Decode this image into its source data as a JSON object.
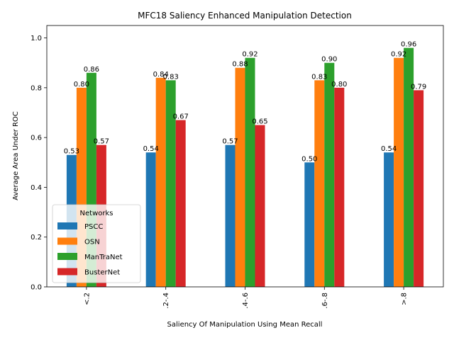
{
  "chart_data": {
    "type": "bar",
    "title": "MFC18 Saliency Enhanced Manipulation Detection",
    "xlabel": "Saliency Of Manipulation Using Mean Recall",
    "ylabel": "Average Area Under ROC",
    "categories": [
      "<.2",
      ".2-.4",
      ".4-.6",
      ".6-.8",
      ">.8"
    ],
    "ylim": [
      0,
      1.05
    ],
    "yticks": [
      "0.0",
      "0.2",
      "0.4",
      "0.6",
      "0.8",
      "1.0"
    ],
    "grid": false,
    "legend": {
      "title": "Networks",
      "placement": "lower-left"
    },
    "series": [
      {
        "name": "PSCC",
        "color": "#1f77b4",
        "values": [
          0.53,
          0.54,
          0.57,
          0.5,
          0.54
        ],
        "labels": [
          "0.53",
          "0.54",
          "0.57",
          "0.50",
          "0.54"
        ]
      },
      {
        "name": "OSN",
        "color": "#ff7f0e",
        "values": [
          0.8,
          0.84,
          0.88,
          0.83,
          0.92
        ],
        "labels": [
          "0.80",
          "0.84",
          "0.88",
          "0.83",
          "0.92"
        ]
      },
      {
        "name": "ManTraNet",
        "color": "#2ca02c",
        "values": [
          0.86,
          0.83,
          0.92,
          0.9,
          0.96
        ],
        "labels": [
          "0.86",
          "0.83",
          "0.92",
          "0.90",
          "0.96"
        ]
      },
      {
        "name": "BusterNet",
        "color": "#d62728",
        "values": [
          0.57,
          0.67,
          0.65,
          0.8,
          0.79
        ],
        "labels": [
          "0.57",
          "0.67",
          "0.65",
          "0.80",
          "0.79"
        ]
      }
    ]
  }
}
